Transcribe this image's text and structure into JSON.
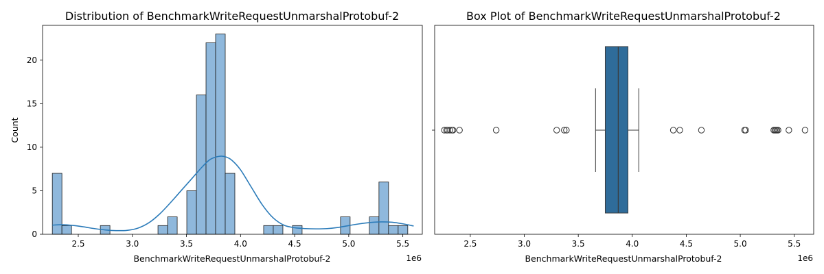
{
  "colors": {
    "bar_fill": "#8fb8dc",
    "bar_stroke": "#1a1a1a",
    "kde_line": "#2b7bb9",
    "box_fill": "#2f6c9a",
    "box_stroke": "#3a3a3a",
    "outlier_stroke": "#333333"
  },
  "chart_data": [
    {
      "type": "bar",
      "subtype": "histogram_with_kde",
      "title": "Distribution of BenchmarkWriteRequestUnmarshalProtobuf-2",
      "xlabel": "BenchmarkWriteRequestUnmarshalProtobuf-2",
      "ylabel": "Count",
      "x_offset_label": "1e6",
      "xlim": [
        2.17,
        5.68
      ],
      "ylim": [
        0,
        24
      ],
      "xticks": [
        2.5,
        3.0,
        3.5,
        4.0,
        4.5,
        5.0,
        5.5
      ],
      "xtick_labels": [
        "2.5",
        "3.0",
        "3.5",
        "4.0",
        "4.5",
        "5.0",
        "5.5"
      ],
      "yticks": [
        0,
        5,
        10,
        15,
        20
      ],
      "ytick_labels": [
        "0",
        "5",
        "10",
        "15",
        "20"
      ],
      "bin_start": 2.26,
      "bin_width": 0.0888,
      "counts": [
        7,
        1,
        0,
        0,
        0,
        1,
        0,
        0,
        0,
        0,
        0,
        1,
        2,
        0,
        5,
        16,
        22,
        23,
        7,
        0,
        0,
        0,
        1,
        1,
        0,
        1,
        0,
        0,
        0,
        0,
        2,
        0,
        0,
        2,
        6,
        1,
        1
      ],
      "kde": {
        "x": [
          2.26,
          2.35,
          2.45,
          2.55,
          2.65,
          2.75,
          2.85,
          2.95,
          3.05,
          3.15,
          3.25,
          3.35,
          3.45,
          3.55,
          3.65,
          3.72,
          3.8,
          3.86,
          3.92,
          4.0,
          4.1,
          4.2,
          4.3,
          4.4,
          4.5,
          4.6,
          4.7,
          4.8,
          4.9,
          5.0,
          5.1,
          5.2,
          5.3,
          5.4,
          5.5,
          5.6
        ],
        "y": [
          1.05,
          1.1,
          1.02,
          0.85,
          0.65,
          0.5,
          0.42,
          0.45,
          0.7,
          1.3,
          2.3,
          3.6,
          5.0,
          6.4,
          7.8,
          8.6,
          8.95,
          8.9,
          8.5,
          7.4,
          5.4,
          3.4,
          1.9,
          1.05,
          0.75,
          0.65,
          0.62,
          0.65,
          0.78,
          1.0,
          1.2,
          1.35,
          1.42,
          1.38,
          1.2,
          0.95
        ]
      }
    },
    {
      "type": "box",
      "title": "Box Plot of BenchmarkWriteRequestUnmarshalProtobuf-2",
      "xlabel": "BenchmarkWriteRequestUnmarshalProtobuf-2",
      "x_offset_label": "1e6",
      "xlim": [
        2.17,
        5.68
      ],
      "xticks": [
        2.5,
        3.0,
        3.5,
        4.0,
        4.5,
        5.0,
        5.5
      ],
      "xtick_labels": [
        "2.5",
        "3.0",
        "3.5",
        "4.0",
        "4.5",
        "5.0",
        "5.5"
      ],
      "whisker_low": 3.66,
      "q1": 3.75,
      "median": 3.87,
      "q3": 3.96,
      "whisker_high": 4.06,
      "outliers": [
        2.26,
        2.28,
        2.29,
        2.31,
        2.33,
        2.34,
        2.4,
        2.74,
        3.3,
        3.37,
        3.39,
        4.38,
        4.44,
        4.64,
        5.04,
        5.05,
        5.31,
        5.32,
        5.33,
        5.34,
        5.35,
        5.45,
        5.6
      ]
    }
  ]
}
